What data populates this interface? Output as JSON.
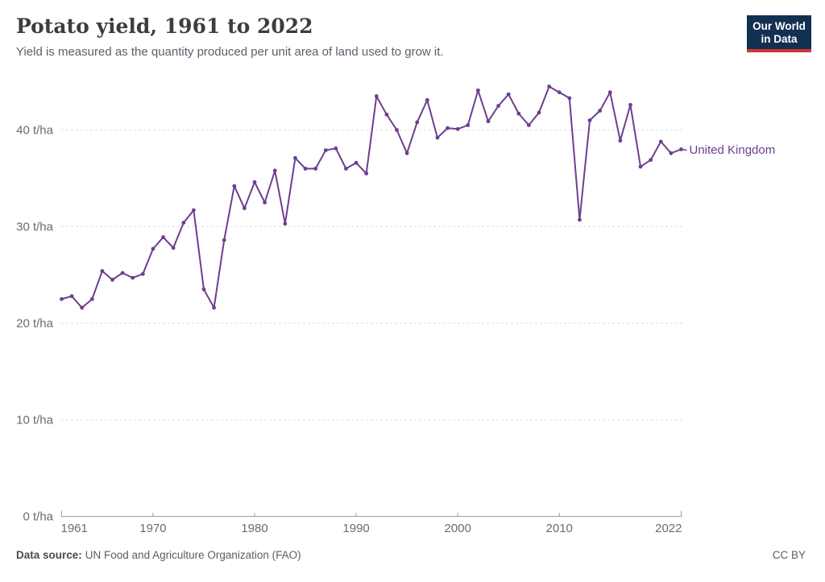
{
  "header": {
    "title": "Potato yield, 1961 to 2022",
    "subtitle": "Yield is measured as the quantity produced per unit area of land used to grow it."
  },
  "logo": {
    "line1": "Our World",
    "line2": "in Data",
    "bg_color": "#12304f",
    "accent_color": "#d13438"
  },
  "chart_data": {
    "type": "line",
    "title": "Potato yield, 1961 to 2022",
    "unit": "t/ha",
    "grid": true,
    "legend_position": "right-of-line-end",
    "x_range": [
      1961,
      2022
    ],
    "ylim": [
      0,
      45
    ],
    "x_ticks": [
      1961,
      1970,
      1980,
      1990,
      2000,
      2010,
      2022
    ],
    "y_ticks": [
      0,
      10,
      20,
      30,
      40
    ],
    "y_tick_suffix": " t/ha",
    "series": [
      {
        "name": "United Kingdom",
        "color": "#6d3e91",
        "x": [
          1961,
          1962,
          1963,
          1964,
          1965,
          1966,
          1967,
          1968,
          1969,
          1970,
          1971,
          1972,
          1973,
          1974,
          1975,
          1976,
          1977,
          1978,
          1979,
          1980,
          1981,
          1982,
          1983,
          1984,
          1985,
          1986,
          1987,
          1988,
          1989,
          1990,
          1991,
          1992,
          1993,
          1994,
          1995,
          1996,
          1997,
          1998,
          1999,
          2000,
          2001,
          2002,
          2003,
          2004,
          2005,
          2006,
          2007,
          2008,
          2009,
          2010,
          2011,
          2012,
          2013,
          2014,
          2015,
          2016,
          2017,
          2018,
          2019,
          2020,
          2021,
          2022
        ],
        "values": [
          22.5,
          22.8,
          21.6,
          22.5,
          25.4,
          24.5,
          25.2,
          24.7,
          25.1,
          27.7,
          28.9,
          27.8,
          30.4,
          31.7,
          23.5,
          21.6,
          28.6,
          34.2,
          31.9,
          34.6,
          32.5,
          35.8,
          30.3,
          37.1,
          36.0,
          36.0,
          37.9,
          38.1,
          36.0,
          36.6,
          35.5,
          43.5,
          41.6,
          40.0,
          37.6,
          40.8,
          43.1,
          39.2,
          40.2,
          40.1,
          40.5,
          44.1,
          40.9,
          42.5,
          43.7,
          41.7,
          40.5,
          41.8,
          44.5,
          43.9,
          43.3,
          30.7,
          41.0,
          42.0,
          43.9,
          38.9,
          42.6,
          36.2,
          36.9,
          38.8,
          37.6,
          38.0
        ]
      }
    ],
    "axis_color": "#a1a1a1",
    "gridline_color": "#d2d2d2",
    "tick_label_color": "#6b6b6b"
  },
  "footer": {
    "source_label": "Data source:",
    "source_text": "UN Food and Agriculture Organization (FAO)",
    "license": "CC BY"
  }
}
